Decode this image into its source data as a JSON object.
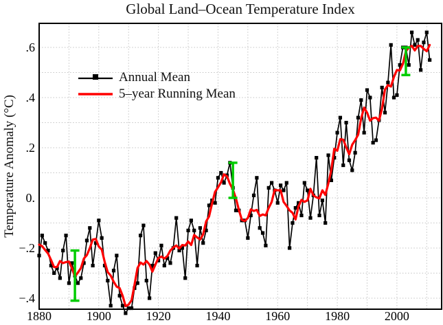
{
  "chart_data": {
    "type": "line",
    "title": "Global Land–Ocean Temperature Index",
    "ylabel": "Temperature Anomaly (°C)",
    "xlabel": "",
    "xlim": [
      1880,
      2015
    ],
    "ylim": [
      -0.444,
      0.696
    ],
    "grid": true,
    "xgrid_step": 10,
    "ygrid_step": 0.1,
    "legend_position": "upper-left-inside",
    "xticks": [
      {
        "value": 1880,
        "label": "1880"
      },
      {
        "value": 1900,
        "label": "1900"
      },
      {
        "value": 1920,
        "label": "1920"
      },
      {
        "value": 1940,
        "label": "1940"
      },
      {
        "value": 1960,
        "label": "1960"
      },
      {
        "value": 1980,
        "label": "1980"
      },
      {
        "value": 2000,
        "label": "2000"
      }
    ],
    "yticks": [
      {
        "value": -0.4,
        "label": "−.4"
      },
      {
        "value": -0.2,
        "label": "−.2"
      },
      {
        "value": 0.0,
        "label": "0."
      },
      {
        "value": 0.2,
        "label": ".2"
      },
      {
        "value": 0.4,
        "label": ".4"
      },
      {
        "value": 0.6,
        "label": ".6"
      }
    ],
    "x_start": 1880,
    "x_end": 2011,
    "series": [
      {
        "name": "Annual Mean",
        "color": "#000000",
        "marker": "square",
        "values": [
          -0.23,
          -0.15,
          -0.18,
          -0.21,
          -0.27,
          -0.3,
          -0.28,
          -0.32,
          -0.21,
          -0.15,
          -0.34,
          -0.26,
          -0.31,
          -0.34,
          -0.32,
          -0.26,
          -0.17,
          -0.12,
          -0.27,
          -0.18,
          -0.09,
          -0.16,
          -0.27,
          -0.33,
          -0.43,
          -0.29,
          -0.23,
          -0.39,
          -0.43,
          -0.46,
          -0.44,
          -0.44,
          -0.36,
          -0.34,
          -0.15,
          -0.11,
          -0.33,
          -0.4,
          -0.27,
          -0.22,
          -0.25,
          -0.19,
          -0.27,
          -0.24,
          -0.26,
          -0.2,
          -0.08,
          -0.21,
          -0.2,
          -0.32,
          -0.13,
          -0.09,
          -0.13,
          -0.27,
          -0.12,
          -0.18,
          -0.13,
          -0.03,
          -0.01,
          -0.02,
          0.08,
          0.1,
          0.06,
          0.09,
          0.14,
          0.04,
          -0.05,
          -0.05,
          -0.09,
          -0.09,
          -0.16,
          -0.07,
          0.01,
          0.08,
          -0.12,
          -0.14,
          -0.19,
          0.04,
          0.06,
          0.03,
          -0.02,
          0.05,
          0.03,
          0.06,
          -0.2,
          -0.1,
          -0.04,
          -0.02,
          -0.07,
          0.06,
          0.03,
          -0.08,
          0.01,
          0.16,
          -0.07,
          -0.01,
          -0.1,
          0.17,
          0.07,
          0.16,
          0.26,
          0.32,
          0.13,
          0.3,
          0.15,
          0.11,
          0.18,
          0.32,
          0.39,
          0.26,
          0.43,
          0.4,
          0.22,
          0.23,
          0.31,
          0.44,
          0.34,
          0.46,
          0.61,
          0.4,
          0.41,
          0.53,
          0.6,
          0.6,
          0.53,
          0.66,
          0.61,
          0.63,
          0.51,
          0.62,
          0.66,
          0.55
        ]
      },
      {
        "name": "5–year Running Mean",
        "color": "#ff0000",
        "derived": "5-year centered running mean of Annual Mean (partial windows at ends)"
      }
    ],
    "error_bars": {
      "color": "#00cc00",
      "points": [
        {
          "x": 1892,
          "low": -0.41,
          "high": -0.21
        },
        {
          "x": 1945,
          "low": 0.0,
          "high": 0.14
        },
        {
          "x": 2003,
          "low": 0.49,
          "high": 0.6
        }
      ]
    }
  }
}
